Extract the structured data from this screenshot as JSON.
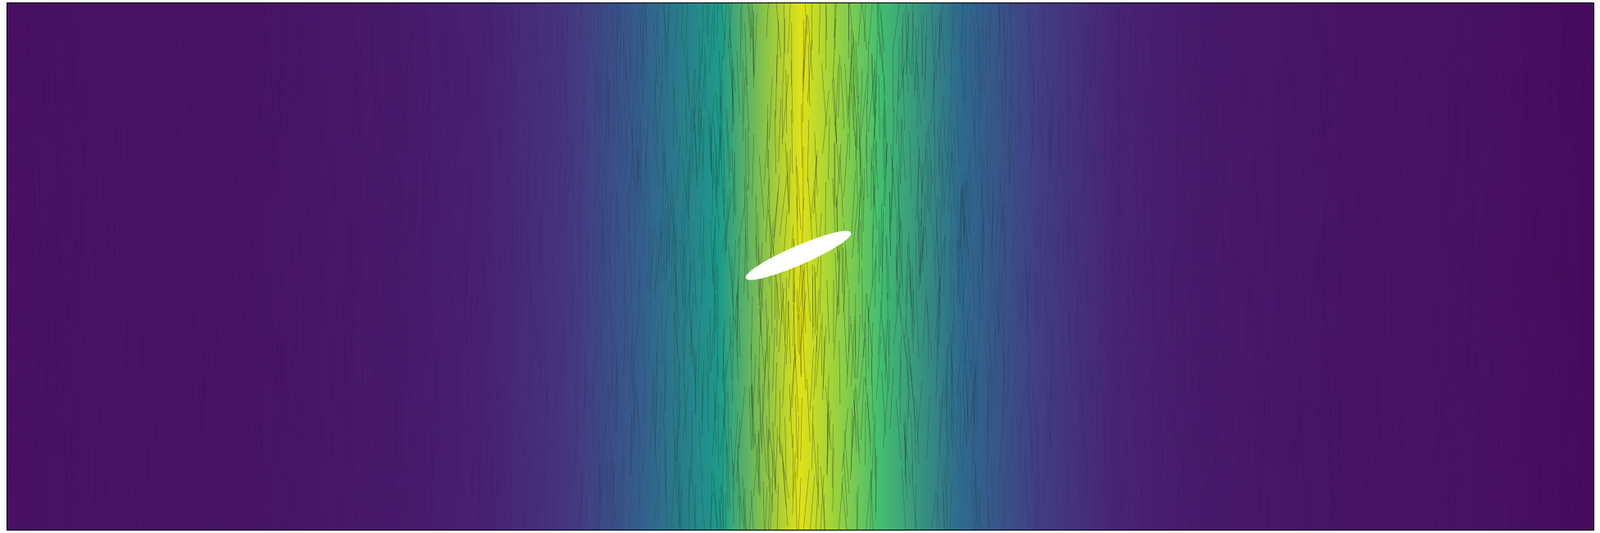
{
  "chart_data": {
    "type": "field",
    "x": [
      0.0,
      0.05,
      0.1,
      0.15,
      0.2,
      0.25,
      0.3,
      0.35,
      0.4,
      0.45,
      0.5,
      0.55,
      0.6,
      0.65,
      0.7,
      0.75,
      0.8,
      0.85,
      0.9,
      0.95,
      1.0
    ],
    "values": [
      0.04,
      0.05,
      0.05,
      0.05,
      0.06,
      0.07,
      0.09,
      0.15,
      0.3,
      0.55,
      0.95,
      0.7,
      0.35,
      0.18,
      0.1,
      0.07,
      0.06,
      0.05,
      0.05,
      0.04,
      0.03
    ],
    "xlim": [
      0,
      1
    ],
    "ylim": [
      0,
      1
    ],
    "tick_labels": false
  }
}
